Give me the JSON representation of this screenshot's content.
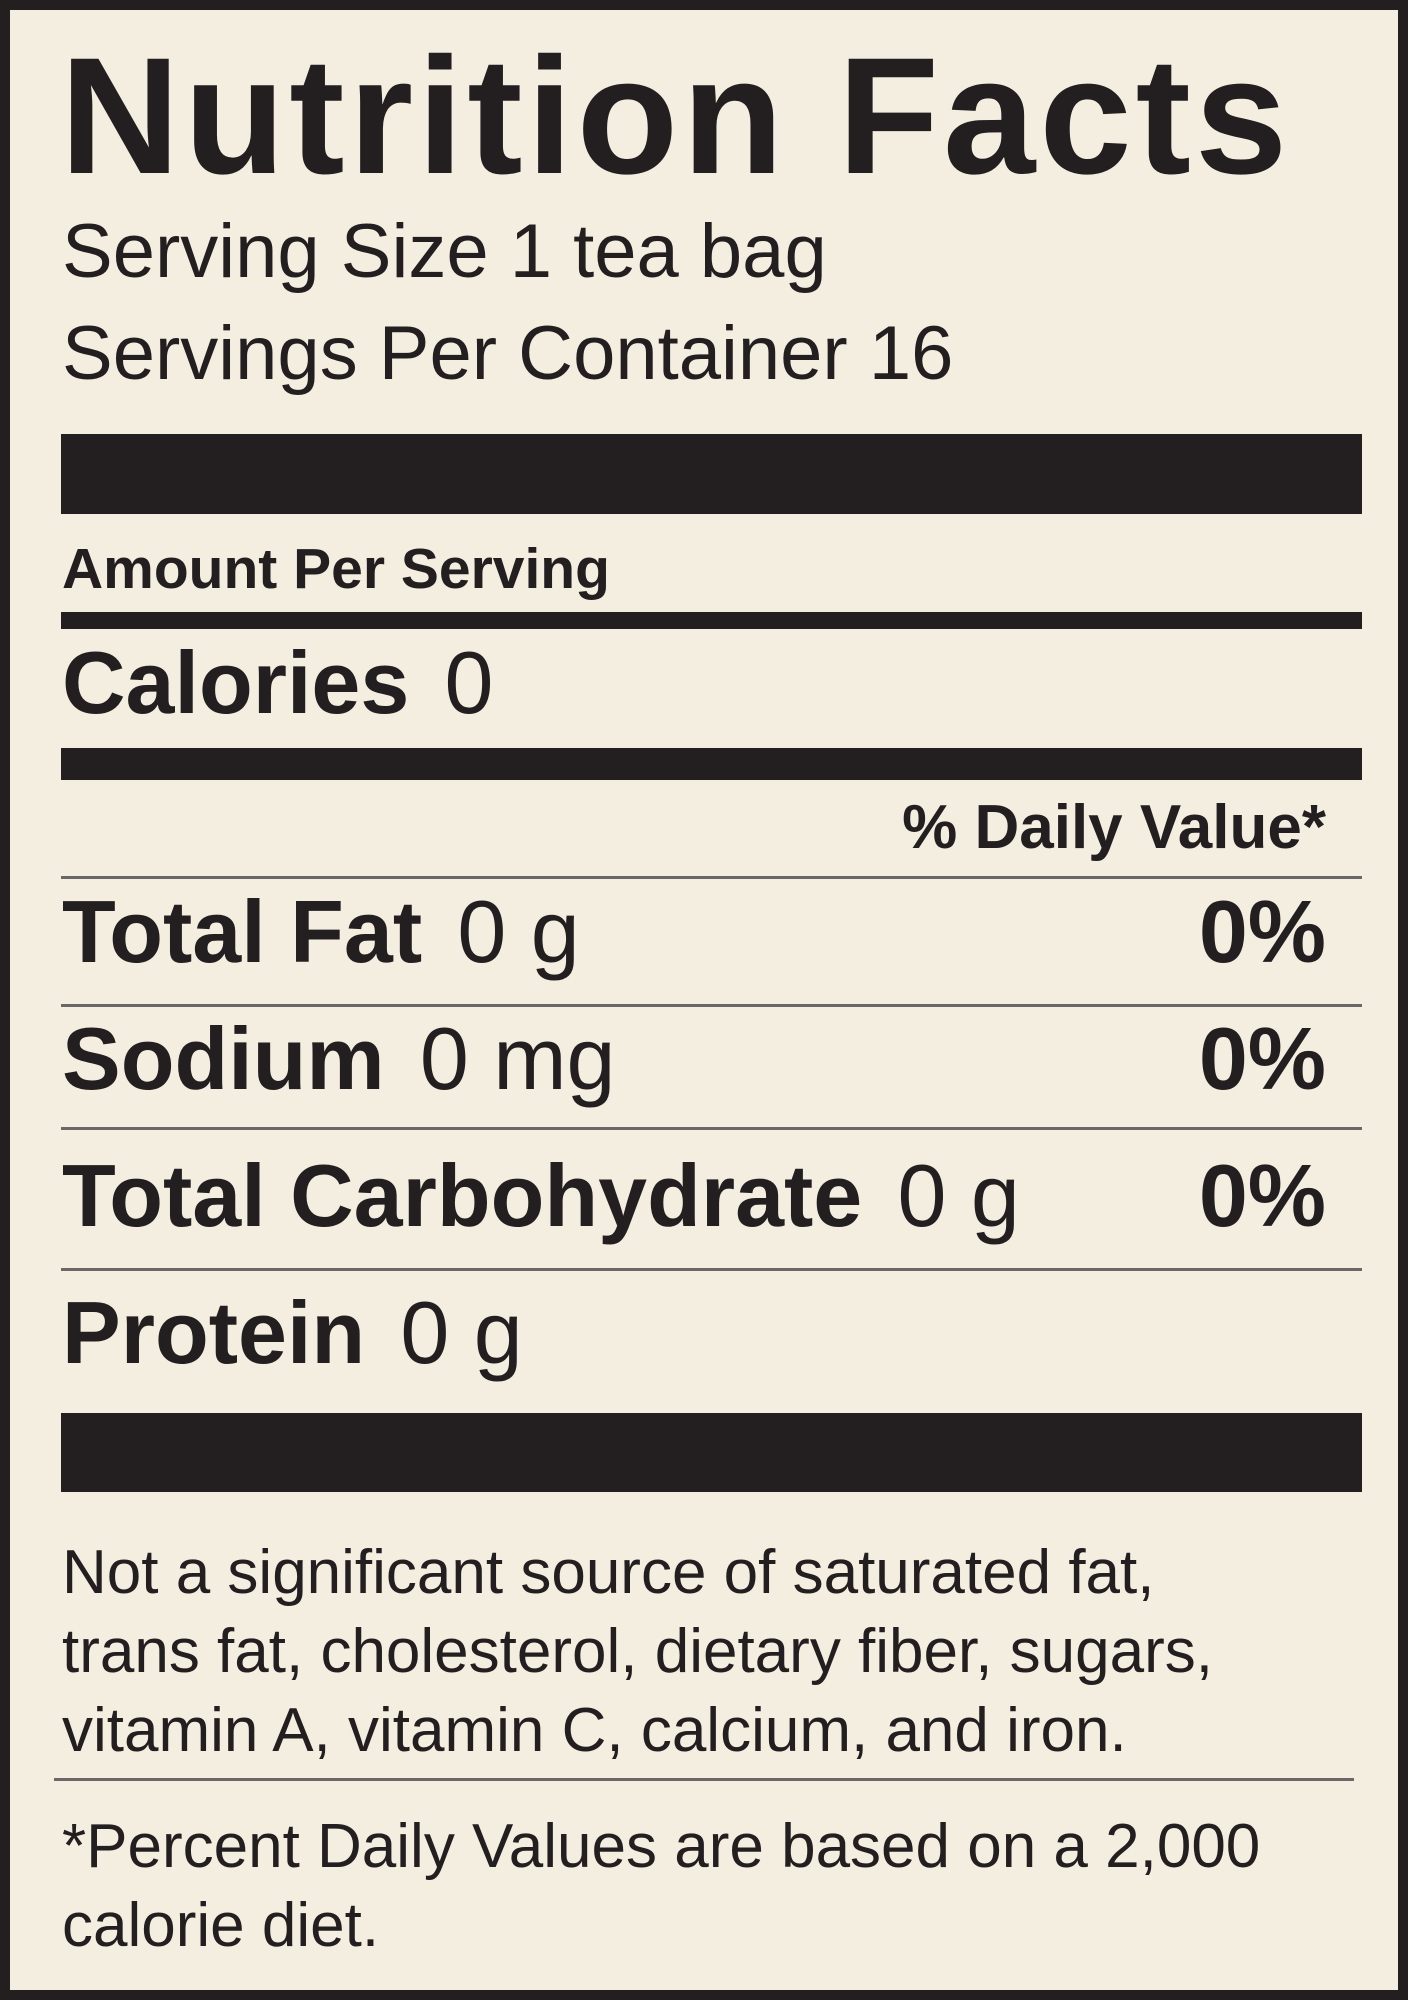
{
  "title": "Nutrition Facts",
  "serving_size": "Serving Size 1 tea bag",
  "servings_per_container": "Servings Per Container 16",
  "amount_per_serving": "Amount Per Serving",
  "calories": {
    "label": "Calories",
    "value": "0"
  },
  "daily_value_header": "% Daily Value*",
  "nutrients": [
    {
      "label": "Total Fat",
      "amount": "0 g",
      "dv": "0%"
    },
    {
      "label": "Sodium",
      "amount": "0 mg",
      "dv": "0%"
    },
    {
      "label": "Total Carbohydrate",
      "amount": "0 g",
      "dv": "0%"
    },
    {
      "label": "Protein",
      "amount": "0 g",
      "dv": ""
    }
  ],
  "not_significant_lines": [
    "Not a significant source of saturated fat,",
    "trans fat, cholesterol, dietary fiber, sugars,",
    "vitamin A, vitamin C, calcium, and iron."
  ],
  "footnote_lines": [
    "*Percent Daily Values are based on a 2,000",
    "calorie diet."
  ],
  "colors": {
    "background": "#f3eedf",
    "ink": "#231f20"
  }
}
